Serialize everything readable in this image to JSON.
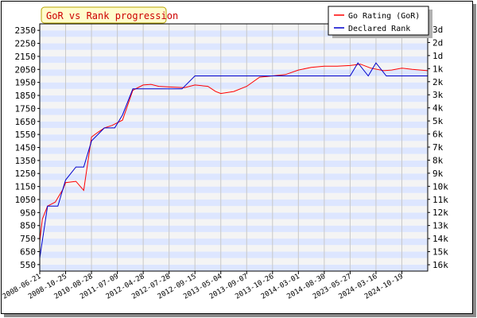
{
  "chart_data": {
    "type": "line",
    "title": "GoR vs Rank progression",
    "x_categories": [
      "2008-06-21",
      "2008-10-25",
      "2010-08-28",
      "2011-07-09",
      "2012-04-28",
      "2012-07-28",
      "2012-09-15",
      "2013-05-04",
      "2013-09-07",
      "2013-10-26",
      "2014-03-01",
      "2014-08-30",
      "2023-05-27",
      "2024-03-16",
      "2024-10-19"
    ],
    "y_left": {
      "ticks": [
        550,
        650,
        750,
        850,
        950,
        1050,
        1150,
        1250,
        1350,
        1450,
        1550,
        1650,
        1750,
        1850,
        1950,
        2050,
        2150,
        2250,
        2350
      ],
      "ylim": [
        500,
        2400
      ]
    },
    "y_right": {
      "ticks": [
        "3d",
        "2d",
        "1d",
        "1k",
        "2k",
        "3k",
        "4k",
        "5k",
        "6k",
        "7k",
        "8k",
        "9k",
        "10k",
        "11k",
        "12k",
        "13k",
        "14k",
        "15k",
        "16k"
      ]
    },
    "grid": true,
    "legend_position": "top-right",
    "colors": {
      "band": "#dde6ff",
      "grid": "#c8c8c8",
      "title_bg": "#fffccc"
    },
    "series": [
      {
        "name": "Go Rating (GoR)",
        "color": "#ff0000",
        "points": [
          [
            0,
            730
          ],
          [
            0.1,
            900
          ],
          [
            0.3,
            1000
          ],
          [
            0.6,
            1030
          ],
          [
            0.9,
            1130
          ],
          [
            1.0,
            1180
          ],
          [
            1.4,
            1190
          ],
          [
            1.7,
            1120
          ],
          [
            2.0,
            1530
          ],
          [
            2.2,
            1560
          ],
          [
            2.5,
            1600
          ],
          [
            2.8,
            1620
          ],
          [
            3.2,
            1660
          ],
          [
            3.6,
            1890
          ],
          [
            4.0,
            1930
          ],
          [
            4.3,
            1935
          ],
          [
            4.6,
            1920
          ],
          [
            5.0,
            1915
          ],
          [
            5.6,
            1910
          ],
          [
            6.0,
            1930
          ],
          [
            6.5,
            1920
          ],
          [
            6.8,
            1880
          ],
          [
            7.0,
            1865
          ],
          [
            7.5,
            1880
          ],
          [
            8.0,
            1920
          ],
          [
            8.5,
            1990
          ],
          [
            9.0,
            2000
          ],
          [
            9.5,
            2010
          ],
          [
            10.0,
            2045
          ],
          [
            10.5,
            2065
          ],
          [
            11.0,
            2075
          ],
          [
            11.5,
            2075
          ],
          [
            12.0,
            2080
          ],
          [
            12.4,
            2090
          ],
          [
            12.8,
            2060
          ],
          [
            13.3,
            2040
          ],
          [
            13.6,
            2045
          ],
          [
            14.0,
            2060
          ],
          [
            14.4,
            2050
          ],
          [
            15.0,
            2040
          ]
        ]
      },
      {
        "name": "Declared Rank",
        "color": "#0000cc",
        "points": [
          [
            0,
            600
          ],
          [
            0.3,
            1000
          ],
          [
            0.7,
            1000
          ],
          [
            1.0,
            1200
          ],
          [
            1.4,
            1300
          ],
          [
            1.7,
            1300
          ],
          [
            2.0,
            1500
          ],
          [
            2.5,
            1600
          ],
          [
            2.9,
            1600
          ],
          [
            3.2,
            1700
          ],
          [
            3.6,
            1900
          ],
          [
            5.5,
            1900
          ],
          [
            6.0,
            2000
          ],
          [
            12.0,
            2000
          ],
          [
            12.3,
            2100
          ],
          [
            12.7,
            2000
          ],
          [
            13.0,
            2100
          ],
          [
            13.4,
            2000
          ],
          [
            15.0,
            2000
          ]
        ]
      }
    ]
  }
}
